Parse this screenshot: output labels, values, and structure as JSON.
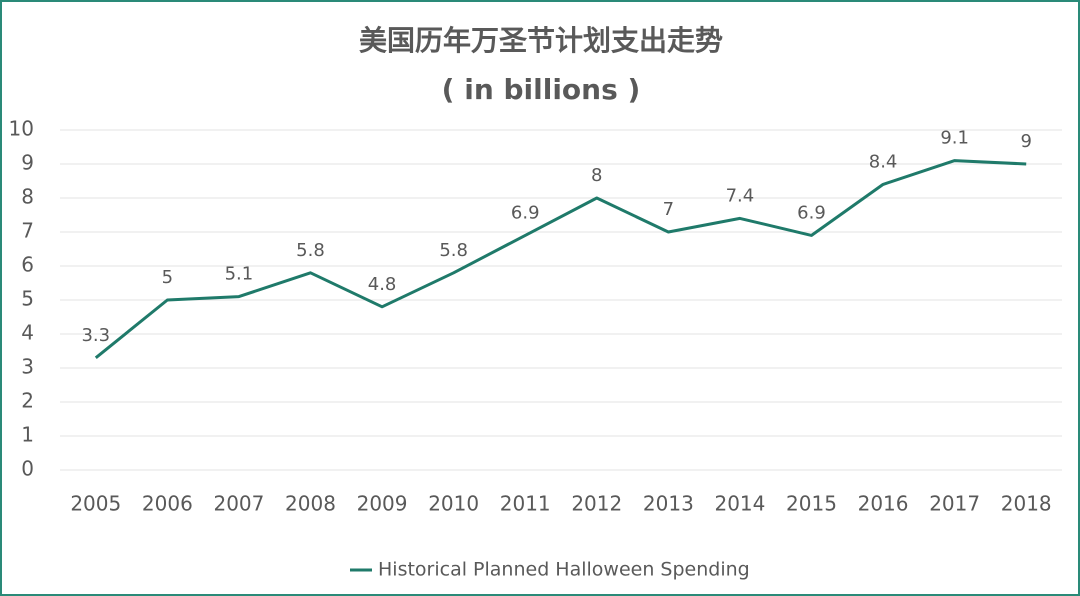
{
  "chart_data": {
    "type": "line",
    "title": "美国历年万圣节计划支出走势",
    "subtitle": "( in billions )",
    "categories": [
      "2005",
      "2006",
      "2007",
      "2008",
      "2009",
      "2010",
      "2011",
      "2012",
      "2013",
      "2014",
      "2015",
      "2016",
      "2017",
      "2018"
    ],
    "series": [
      {
        "name": "Historical Planned Halloween Spending",
        "color": "#1f7a6a",
        "values": [
          3.3,
          5,
          5.1,
          5.8,
          4.8,
          5.8,
          6.9,
          8,
          7,
          7.4,
          6.9,
          8.4,
          9.1,
          9
        ]
      }
    ],
    "ylim": [
      0,
      10
    ],
    "yticks": [
      0,
      1,
      2,
      3,
      4,
      5,
      6,
      7,
      8,
      9,
      10
    ],
    "grid": true,
    "legend": "bottom"
  }
}
